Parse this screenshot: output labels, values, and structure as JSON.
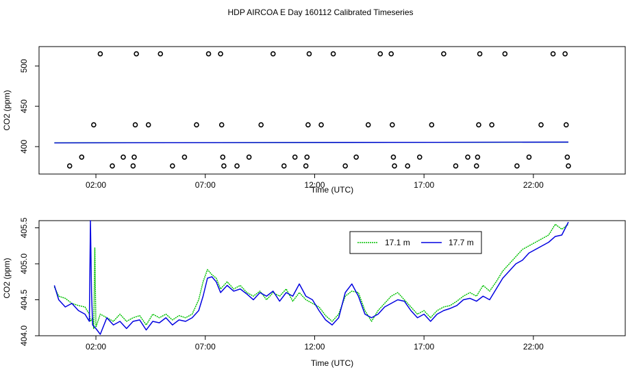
{
  "page": {
    "title": "HDP AIRCOA E  Day 160112  Calibrated Timeseries"
  },
  "colors": {
    "series_17_1": "#00c000",
    "series_17_7": "#0000e0",
    "axis": "#000000"
  },
  "chart_data": [
    {
      "type": "scatter",
      "xlabel": "Time (UTC)",
      "ylabel": "CO2 (ppm)",
      "xlim": [
        -0.6,
        26.2
      ],
      "ylim": [
        366,
        524
      ],
      "xticks": [
        2,
        7,
        12,
        17,
        22
      ],
      "xtick_labels": [
        "02:00",
        "07:00",
        "12:00",
        "17:00",
        "22:00"
      ],
      "yticks": [
        400,
        450,
        500
      ],
      "grid": false,
      "points": [
        [
          0.8,
          376
        ],
        [
          1.35,
          387
        ],
        [
          1.9,
          427
        ],
        [
          2.2,
          515
        ],
        [
          2.75,
          376
        ],
        [
          3.25,
          387
        ],
        [
          3.7,
          376
        ],
        [
          3.75,
          387
        ],
        [
          3.8,
          427
        ],
        [
          3.85,
          515
        ],
        [
          4.4,
          427
        ],
        [
          4.95,
          515
        ],
        [
          5.5,
          376
        ],
        [
          6.05,
          387
        ],
        [
          6.6,
          427
        ],
        [
          7.15,
          515
        ],
        [
          7.7,
          515
        ],
        [
          7.75,
          427
        ],
        [
          7.8,
          387
        ],
        [
          7.85,
          376
        ],
        [
          8.45,
          376
        ],
        [
          9.0,
          387
        ],
        [
          9.55,
          427
        ],
        [
          10.1,
          515
        ],
        [
          10.6,
          376
        ],
        [
          11.1,
          387
        ],
        [
          11.6,
          376
        ],
        [
          11.65,
          387
        ],
        [
          11.7,
          427
        ],
        [
          11.75,
          515
        ],
        [
          12.3,
          427
        ],
        [
          12.85,
          515
        ],
        [
          13.4,
          376
        ],
        [
          13.9,
          387
        ],
        [
          14.45,
          427
        ],
        [
          15.0,
          515
        ],
        [
          15.5,
          515
        ],
        [
          15.55,
          427
        ],
        [
          15.6,
          387
        ],
        [
          15.65,
          376
        ],
        [
          16.25,
          376
        ],
        [
          16.8,
          387
        ],
        [
          17.35,
          427
        ],
        [
          17.9,
          515
        ],
        [
          18.45,
          376
        ],
        [
          19.0,
          387
        ],
        [
          19.4,
          376
        ],
        [
          19.45,
          387
        ],
        [
          19.5,
          427
        ],
        [
          19.55,
          515
        ],
        [
          20.1,
          427
        ],
        [
          20.7,
          515
        ],
        [
          21.25,
          376
        ],
        [
          21.8,
          387
        ],
        [
          22.35,
          427
        ],
        [
          22.9,
          515
        ],
        [
          23.45,
          515
        ],
        [
          23.5,
          427
        ],
        [
          23.55,
          387
        ],
        [
          23.6,
          376
        ]
      ],
      "baseline_series": [
        {
          "color": "#00c000",
          "x": [
            0.1,
            23.6
          ],
          "y": [
            404.7,
            405.5
          ]
        },
        {
          "color": "#0000e0",
          "x": [
            0.1,
            23.6
          ],
          "y": [
            404.6,
            405.6
          ]
        }
      ]
    },
    {
      "type": "line",
      "xlabel": "Time (UTC)",
      "ylabel": "CO2 (ppm)",
      "xlim": [
        -0.6,
        26.2
      ],
      "ylim": [
        404.0,
        405.6
      ],
      "xticks": [
        2,
        7,
        12,
        17,
        22
      ],
      "xtick_labels": [
        "02:00",
        "07:00",
        "12:00",
        "17:00",
        "22:00"
      ],
      "yticks": [
        404.0,
        404.5,
        405.0,
        405.5
      ],
      "ytick_labels": [
        "404.0",
        "404.5",
        "405.0",
        "405.5"
      ],
      "legend_position": "top-right",
      "grid": false,
      "series": [
        {
          "name": "17.1 m",
          "color": "#00c000",
          "style": "dotted",
          "points": [
            [
              0.1,
              404.68
            ],
            [
              0.3,
              404.55
            ],
            [
              0.6,
              404.52
            ],
            [
              0.9,
              404.45
            ],
            [
              1.2,
              404.42
            ],
            [
              1.5,
              404.4
            ],
            [
              1.7,
              404.3
            ],
            [
              1.75,
              404.2
            ],
            [
              1.85,
              404.25
            ],
            [
              1.9,
              404.1
            ],
            [
              1.95,
              405.22
            ],
            [
              2.0,
              404.12
            ],
            [
              2.2,
              404.3
            ],
            [
              2.5,
              404.25
            ],
            [
              2.8,
              404.2
            ],
            [
              3.1,
              404.3
            ],
            [
              3.4,
              404.2
            ],
            [
              3.7,
              404.25
            ],
            [
              4.0,
              404.28
            ],
            [
              4.3,
              404.15
            ],
            [
              4.6,
              404.3
            ],
            [
              4.9,
              404.25
            ],
            [
              5.2,
              404.3
            ],
            [
              5.5,
              404.22
            ],
            [
              5.8,
              404.28
            ],
            [
              6.1,
              404.25
            ],
            [
              6.4,
              404.3
            ],
            [
              6.7,
              404.5
            ],
            [
              6.9,
              404.75
            ],
            [
              7.1,
              404.92
            ],
            [
              7.3,
              404.85
            ],
            [
              7.5,
              404.8
            ],
            [
              7.7,
              404.65
            ],
            [
              8.0,
              404.75
            ],
            [
              8.3,
              404.65
            ],
            [
              8.6,
              404.7
            ],
            [
              8.9,
              404.6
            ],
            [
              9.2,
              404.55
            ],
            [
              9.5,
              404.62
            ],
            [
              9.8,
              404.5
            ],
            [
              10.1,
              404.6
            ],
            [
              10.4,
              404.55
            ],
            [
              10.7,
              404.65
            ],
            [
              11.0,
              404.48
            ],
            [
              11.3,
              404.6
            ],
            [
              11.6,
              404.5
            ],
            [
              11.9,
              404.45
            ],
            [
              12.2,
              404.4
            ],
            [
              12.5,
              404.28
            ],
            [
              12.8,
              404.2
            ],
            [
              13.1,
              404.3
            ],
            [
              13.4,
              404.55
            ],
            [
              13.7,
              404.62
            ],
            [
              14.0,
              404.6
            ],
            [
              14.3,
              404.35
            ],
            [
              14.6,
              404.2
            ],
            [
              14.9,
              404.35
            ],
            [
              15.2,
              404.45
            ],
            [
              15.5,
              404.55
            ],
            [
              15.8,
              404.6
            ],
            [
              16.1,
              404.5
            ],
            [
              16.4,
              404.4
            ],
            [
              16.7,
              404.3
            ],
            [
              17.0,
              404.35
            ],
            [
              17.3,
              404.25
            ],
            [
              17.6,
              404.35
            ],
            [
              17.9,
              404.4
            ],
            [
              18.2,
              404.42
            ],
            [
              18.5,
              404.48
            ],
            [
              18.8,
              404.55
            ],
            [
              19.1,
              404.6
            ],
            [
              19.4,
              404.55
            ],
            [
              19.7,
              404.7
            ],
            [
              20.0,
              404.62
            ],
            [
              20.3,
              404.75
            ],
            [
              20.6,
              404.9
            ],
            [
              20.9,
              405.0
            ],
            [
              21.2,
              405.1
            ],
            [
              21.5,
              405.2
            ],
            [
              21.8,
              405.25
            ],
            [
              22.1,
              405.3
            ],
            [
              22.4,
              405.35
            ],
            [
              22.7,
              405.4
            ],
            [
              23.0,
              405.55
            ],
            [
              23.3,
              405.48
            ],
            [
              23.6,
              405.55
            ]
          ]
        },
        {
          "name": "17.7 m",
          "color": "#0000e0",
          "style": "solid",
          "points": [
            [
              0.1,
              404.7
            ],
            [
              0.3,
              404.5
            ],
            [
              0.6,
              404.4
            ],
            [
              0.9,
              404.45
            ],
            [
              1.2,
              404.35
            ],
            [
              1.5,
              404.3
            ],
            [
              1.7,
              404.2
            ],
            [
              1.75,
              405.6
            ],
            [
              1.8,
              404.6
            ],
            [
              1.85,
              404.15
            ],
            [
              2.0,
              404.1
            ],
            [
              2.2,
              404.02
            ],
            [
              2.5,
              404.25
            ],
            [
              2.8,
              404.15
            ],
            [
              3.1,
              404.2
            ],
            [
              3.4,
              404.1
            ],
            [
              3.7,
              404.2
            ],
            [
              4.0,
              404.22
            ],
            [
              4.3,
              404.08
            ],
            [
              4.6,
              404.2
            ],
            [
              4.9,
              404.18
            ],
            [
              5.2,
              404.25
            ],
            [
              5.5,
              404.15
            ],
            [
              5.8,
              404.22
            ],
            [
              6.1,
              404.2
            ],
            [
              6.4,
              404.25
            ],
            [
              6.7,
              404.35
            ],
            [
              6.9,
              404.55
            ],
            [
              7.1,
              404.8
            ],
            [
              7.3,
              404.82
            ],
            [
              7.5,
              404.75
            ],
            [
              7.7,
              404.6
            ],
            [
              8.0,
              404.7
            ],
            [
              8.3,
              404.62
            ],
            [
              8.6,
              404.65
            ],
            [
              8.9,
              404.58
            ],
            [
              9.2,
              404.5
            ],
            [
              9.5,
              404.6
            ],
            [
              9.8,
              404.55
            ],
            [
              10.1,
              404.62
            ],
            [
              10.4,
              404.48
            ],
            [
              10.7,
              404.6
            ],
            [
              11.0,
              404.55
            ],
            [
              11.3,
              404.72
            ],
            [
              11.6,
              404.55
            ],
            [
              11.9,
              404.5
            ],
            [
              12.2,
              404.35
            ],
            [
              12.5,
              404.22
            ],
            [
              12.8,
              404.15
            ],
            [
              13.1,
              404.25
            ],
            [
              13.4,
              404.6
            ],
            [
              13.7,
              404.72
            ],
            [
              14.0,
              404.55
            ],
            [
              14.3,
              404.3
            ],
            [
              14.6,
              404.25
            ],
            [
              14.9,
              404.3
            ],
            [
              15.2,
              404.4
            ],
            [
              15.5,
              404.45
            ],
            [
              15.8,
              404.5
            ],
            [
              16.1,
              404.48
            ],
            [
              16.4,
              404.35
            ],
            [
              16.7,
              404.25
            ],
            [
              17.0,
              404.3
            ],
            [
              17.3,
              404.2
            ],
            [
              17.6,
              404.3
            ],
            [
              17.9,
              404.35
            ],
            [
              18.2,
              404.38
            ],
            [
              18.5,
              404.42
            ],
            [
              18.8,
              404.5
            ],
            [
              19.1,
              404.52
            ],
            [
              19.4,
              404.48
            ],
            [
              19.7,
              404.55
            ],
            [
              20.0,
              404.5
            ],
            [
              20.3,
              404.65
            ],
            [
              20.6,
              404.8
            ],
            [
              20.9,
              404.9
            ],
            [
              21.2,
              405.0
            ],
            [
              21.5,
              405.05
            ],
            [
              21.8,
              405.15
            ],
            [
              22.1,
              405.2
            ],
            [
              22.4,
              405.25
            ],
            [
              22.7,
              405.3
            ],
            [
              23.0,
              405.38
            ],
            [
              23.3,
              405.4
            ],
            [
              23.6,
              405.58
            ]
          ]
        }
      ]
    }
  ]
}
